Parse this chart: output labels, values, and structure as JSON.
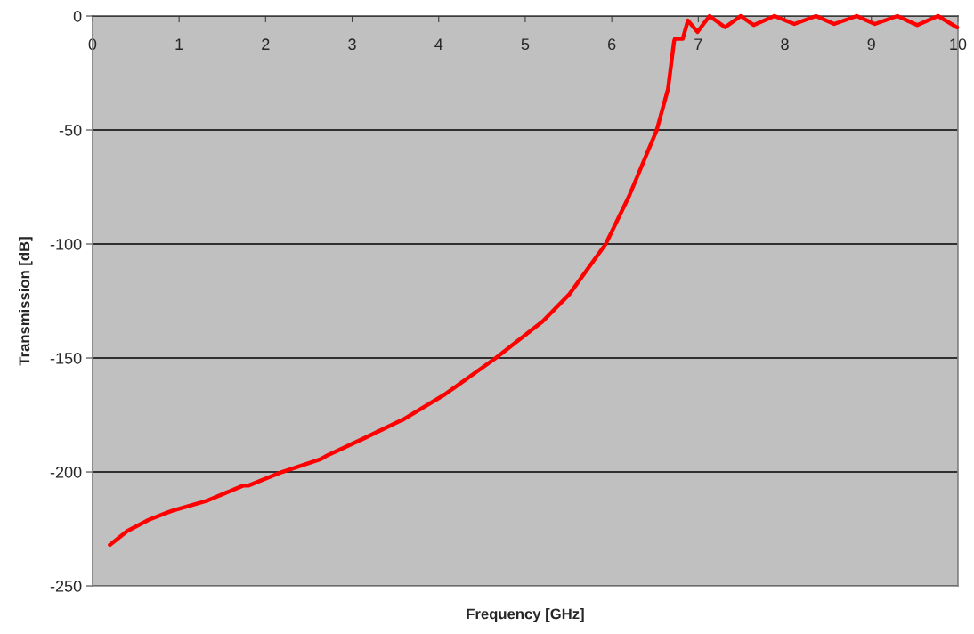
{
  "chart_data": {
    "type": "line",
    "xlabel": "Frequency [GHz]",
    "ylabel": "Transmission [dB]",
    "series": [
      {
        "color": "#ff0000",
        "x": [
          0.2,
          0.4,
          0.65,
          0.85,
          0.92,
          1.33,
          1.74,
          1.8,
          2.19,
          2.63,
          2.7,
          3.15,
          3.53,
          3.59,
          4.07,
          4.66,
          5.2,
          5.51,
          5.93,
          6.2,
          6.52,
          6.65,
          6.72,
          6.73,
          6.82,
          6.88,
          6.99,
          7.13,
          7.31,
          7.49,
          7.64,
          7.88,
          8.11,
          8.36,
          8.57,
          8.83,
          9.04,
          9.3,
          9.53,
          9.77,
          9.99
        ],
        "values": [
          -232,
          -226,
          -221,
          -218,
          -217,
          -212.5,
          -206,
          -206,
          -200,
          -194.5,
          -193,
          -185,
          -178,
          -177,
          -166,
          -150,
          -134,
          -122,
          -100,
          -79,
          -50,
          -32,
          -11,
          -10,
          -10,
          -2,
          -7,
          0,
          -5,
          0,
          -4,
          0,
          -3.5,
          0,
          -3.5,
          0,
          -3.5,
          0,
          -4,
          0,
          -5
        ]
      }
    ],
    "xlim": [
      0,
      10
    ],
    "xticks": [
      0,
      1,
      2,
      3,
      4,
      5,
      6,
      7,
      8,
      9,
      10
    ],
    "ylim": [
      -250,
      0
    ],
    "yticks": [
      -250,
      -200,
      -150,
      -100,
      -50,
      0
    ],
    "grid": "y",
    "marker": "none",
    "line_style": "solid"
  }
}
